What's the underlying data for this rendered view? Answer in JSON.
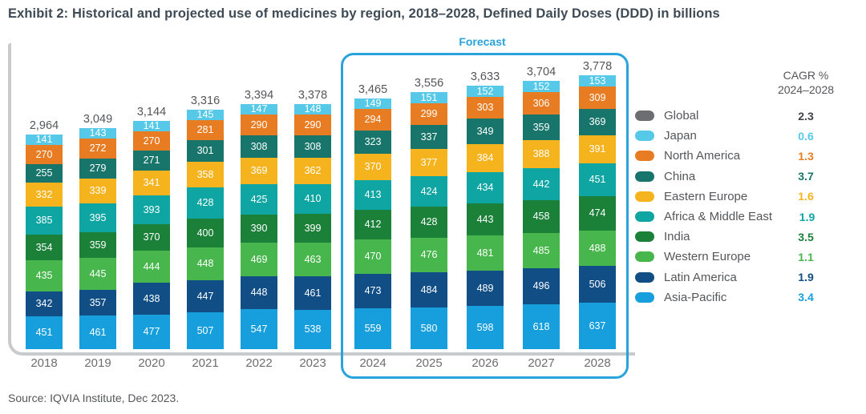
{
  "title": "Exhibit 2: Historical and projected use of medicines by region, 2018–2028, Defined Daily Doses (DDD) in billions",
  "source": "Source: IQVIA Institute, Dec 2023.",
  "chart_data": {
    "type": "bar",
    "stacked": true,
    "title": "Historical and projected use of medicines by region, 2018–2028",
    "unit": "Defined Daily Doses (DDD) in billions",
    "legend_position": "right",
    "gridlines": false,
    "categories": [
      "2018",
      "2019",
      "2020",
      "2021",
      "2022",
      "2023",
      "2024",
      "2025",
      "2026",
      "2027",
      "2028"
    ],
    "totals": [
      2964,
      3049,
      3144,
      3316,
      3394,
      3378,
      3465,
      3556,
      3633,
      3704,
      3778
    ],
    "forecast": {
      "label": "Forecast",
      "start": "2024",
      "end": "2028"
    },
    "legend_header": [
      "CAGR %",
      "2024–2028"
    ],
    "global": {
      "label": "Global",
      "cagr": "2.3",
      "color": "#6D6E71",
      "cagr_color": "#404247"
    },
    "series": [
      {
        "name": "Japan",
        "color": "#56C9E8",
        "cagr": "0.6",
        "values": [
          141,
          143,
          141,
          145,
          147,
          148,
          149,
          151,
          152,
          152,
          153
        ]
      },
      {
        "name": "North America",
        "color": "#E87C22",
        "cagr": "1.3",
        "values": [
          270,
          272,
          270,
          281,
          290,
          290,
          294,
          299,
          303,
          306,
          309
        ]
      },
      {
        "name": "China",
        "color": "#17756B",
        "cagr": "3.7",
        "values": [
          255,
          279,
          271,
          301,
          308,
          308,
          323,
          337,
          349,
          359,
          369
        ]
      },
      {
        "name": "Eastern Europe",
        "color": "#F5B31E",
        "cagr": "1.6",
        "values": [
          332,
          339,
          341,
          358,
          369,
          362,
          370,
          377,
          384,
          388,
          391
        ]
      },
      {
        "name": "Africa & Middle East",
        "color": "#0FA5A3",
        "cagr": "1.9",
        "values": [
          385,
          395,
          393,
          428,
          425,
          410,
          413,
          424,
          434,
          442,
          451
        ]
      },
      {
        "name": "India",
        "color": "#1B8038",
        "cagr": "3.5",
        "values": [
          354,
          359,
          370,
          400,
          390,
          399,
          412,
          428,
          443,
          458,
          474
        ]
      },
      {
        "name": "Western Europe",
        "color": "#47B64C",
        "cagr": "1.1",
        "values": [
          435,
          445,
          444,
          448,
          469,
          463,
          470,
          476,
          481,
          485,
          488
        ]
      },
      {
        "name": "Latin America",
        "color": "#114E85",
        "cagr": "1.9",
        "values": [
          342,
          357,
          438,
          447,
          448,
          461,
          473,
          484,
          489,
          496,
          506
        ]
      },
      {
        "name": "Asia-Pacific",
        "color": "#169FDC",
        "cagr": "3.4",
        "values": [
          451,
          461,
          477,
          507,
          547,
          538,
          559,
          580,
          598,
          618,
          637
        ]
      }
    ]
  }
}
